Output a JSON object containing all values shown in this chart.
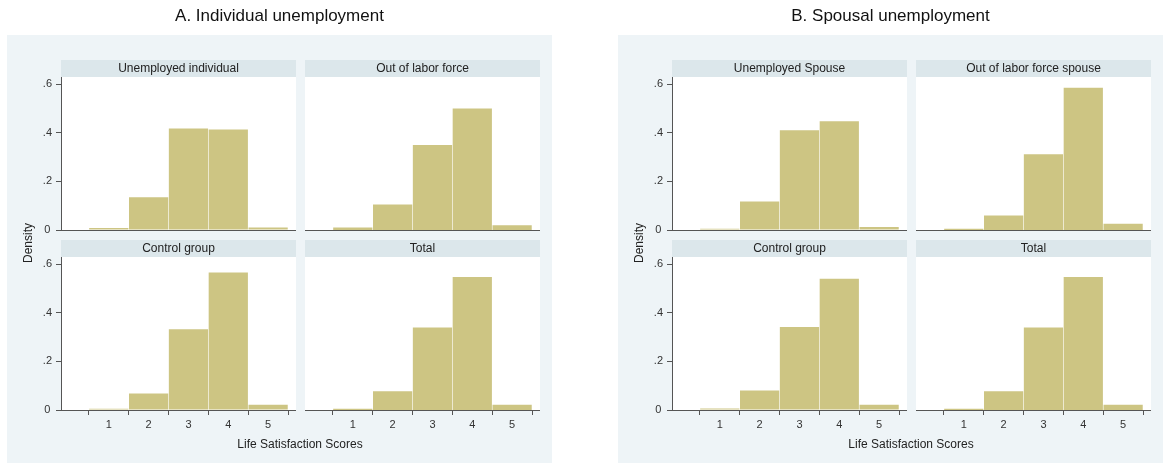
{
  "chart_data": [
    {
      "type": "histogram",
      "subtitle": "A. Individual unemployment",
      "title": "Unemployed individual",
      "ylabel": "Density",
      "bins": [
        0.5,
        1.5,
        2.5,
        3.5,
        4.5,
        5.5
      ],
      "values": [
        0.008,
        0.135,
        0.418,
        0.414,
        0.01
      ],
      "color": "#cdc583",
      "xlim": [
        -0.2,
        5.7
      ],
      "xticks": [
        1,
        2,
        3,
        4,
        5
      ],
      "ylim": [
        0,
        0.63
      ],
      "yticks": [
        {
          "value": 0,
          "label": "0"
        },
        {
          "value": 0.2,
          "label": ".2"
        },
        {
          "value": 0.4,
          "label": ".4"
        },
        {
          "value": 0.6,
          "label": ".6"
        }
      ],
      "tick_labels": "y"
    },
    {
      "type": "histogram",
      "title": "Out of labor force",
      "bins": [
        0.5,
        1.5,
        2.5,
        3.5,
        4.5,
        5.5
      ],
      "values": [
        0.01,
        0.105,
        0.35,
        0.5,
        0.02
      ],
      "color": "#cdc583",
      "xlim": [
        -0.2,
        5.7
      ],
      "xticks": [
        1,
        2,
        3,
        4,
        5
      ],
      "ylim": [
        0,
        0.63
      ],
      "tick_labels": false
    },
    {
      "type": "histogram",
      "title": "Control group",
      "xlabel": "Life Satisfaction Scores",
      "bins": [
        0.5,
        1.5,
        2.5,
        3.5,
        4.5,
        5.5
      ],
      "values": [
        0.005,
        0.068,
        0.332,
        0.566,
        0.022
      ],
      "color": "#cdc583",
      "xlim": [
        -0.2,
        5.7
      ],
      "ylim": [
        0,
        0.63
      ],
      "xticks": [
        1,
        2,
        3,
        4,
        5
      ],
      "yticks": [
        {
          "value": 0,
          "label": "0"
        },
        {
          "value": 0.2,
          "label": ".2"
        },
        {
          "value": 0.4,
          "label": ".4"
        },
        {
          "value": 0.6,
          "label": ".6"
        }
      ]
    },
    {
      "type": "histogram",
      "title": "Total",
      "bins": [
        0.5,
        1.5,
        2.5,
        3.5,
        4.5,
        5.5
      ],
      "values": [
        0.005,
        0.077,
        0.34,
        0.548,
        0.022
      ],
      "color": "#cdc583",
      "xlim": [
        -0.2,
        5.7
      ],
      "ylim": [
        0,
        0.63
      ],
      "xticks": [
        1,
        2,
        3,
        4,
        5
      ],
      "tick_labels": "x"
    },
    {
      "type": "histogram",
      "subtitle": "B. Spousal unemployment",
      "title": "Unemployed Spouse",
      "ylabel": "Density",
      "bins": [
        0.5,
        1.5,
        2.5,
        3.5,
        4.5,
        5.5
      ],
      "values": [
        0.005,
        0.117,
        0.411,
        0.448,
        0.012
      ],
      "color": "#cdc583",
      "xlim": [
        -0.2,
        5.7
      ],
      "xticks": [
        1,
        2,
        3,
        4,
        5
      ],
      "ylim": [
        0,
        0.63
      ],
      "yticks": [
        {
          "value": 0,
          "label": "0"
        },
        {
          "value": 0.2,
          "label": ".2"
        },
        {
          "value": 0.4,
          "label": ".4"
        },
        {
          "value": 0.6,
          "label": ".6"
        }
      ],
      "tick_labels": "y"
    },
    {
      "type": "histogram",
      "title": "Out of labor force spouse",
      "bins": [
        0.5,
        1.5,
        2.5,
        3.5,
        4.5,
        5.5
      ],
      "values": [
        0.005,
        0.06,
        0.312,
        0.586,
        0.026
      ],
      "color": "#cdc583",
      "xlim": [
        -0.2,
        5.7
      ],
      "xticks": [
        1,
        2,
        3,
        4,
        5
      ],
      "ylim": [
        0,
        0.63
      ],
      "tick_labels": false
    },
    {
      "type": "histogram",
      "title": "Control group",
      "xlabel": "Life Satisfaction Scores",
      "bins": [
        0.5,
        1.5,
        2.5,
        3.5,
        4.5,
        5.5
      ],
      "values": [
        0.006,
        0.08,
        0.342,
        0.54,
        0.022
      ],
      "color": "#cdc583",
      "xlim": [
        -0.2,
        5.7
      ],
      "ylim": [
        0,
        0.63
      ],
      "xticks": [
        1,
        2,
        3,
        4,
        5
      ],
      "yticks": [
        {
          "value": 0,
          "label": "0"
        },
        {
          "value": 0.2,
          "label": ".2"
        },
        {
          "value": 0.4,
          "label": ".4"
        },
        {
          "value": 0.6,
          "label": ".6"
        }
      ]
    },
    {
      "type": "histogram",
      "title": "Total",
      "bins": [
        0.5,
        1.5,
        2.5,
        3.5,
        4.5,
        5.5
      ],
      "values": [
        0.005,
        0.077,
        0.34,
        0.548,
        0.022
      ],
      "color": "#cdc583",
      "xlim": [
        -0.2,
        5.7
      ],
      "ylim": [
        0,
        0.63
      ],
      "xticks": [
        1,
        2,
        3,
        4,
        5
      ],
      "tick_labels": "x"
    }
  ]
}
